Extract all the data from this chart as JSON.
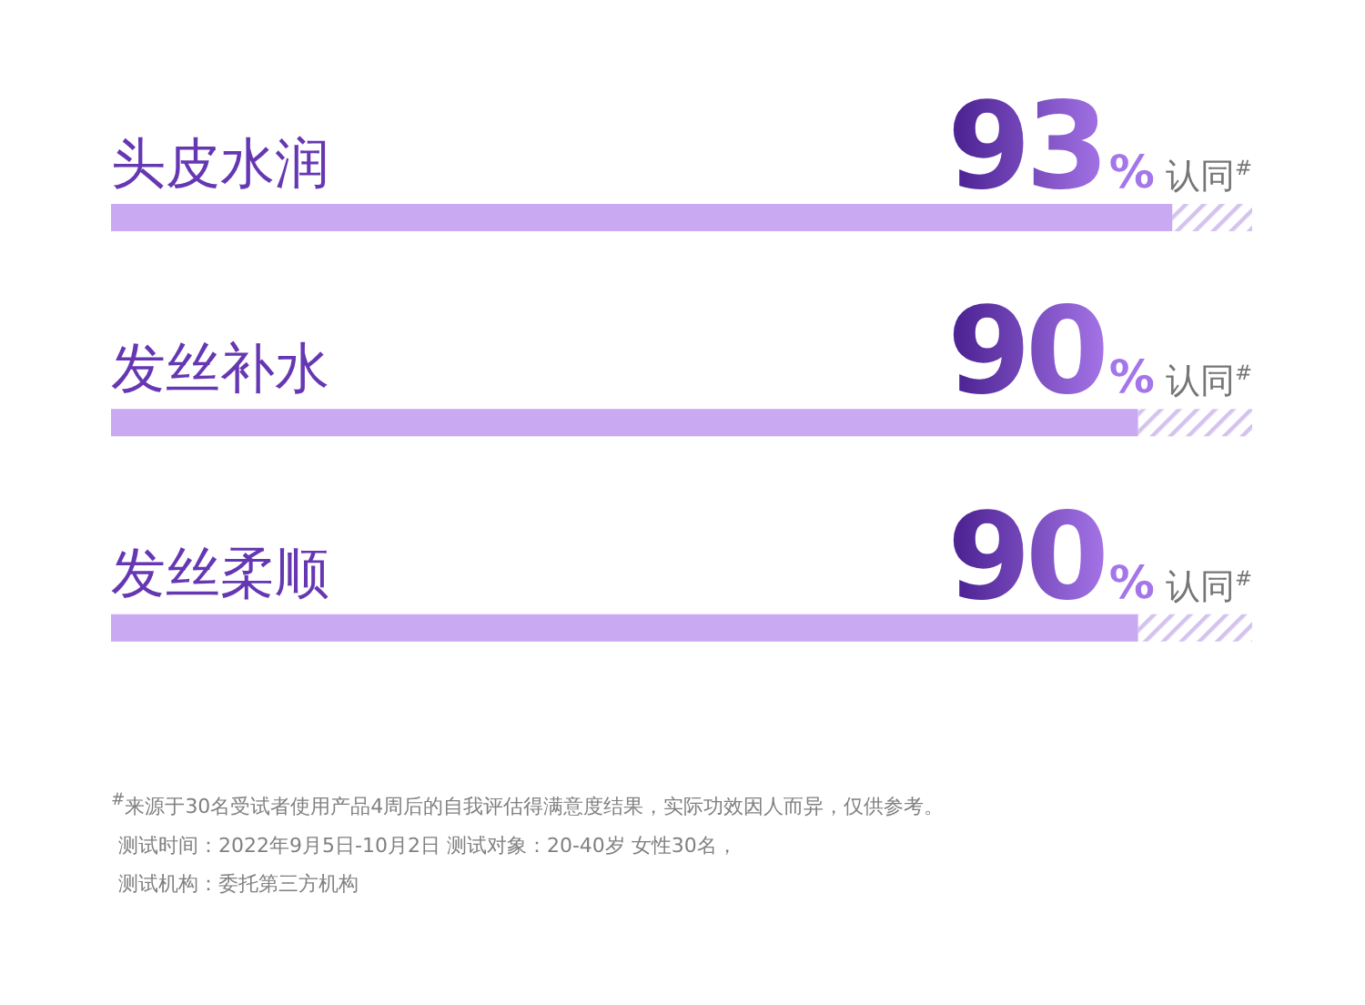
{
  "chart_data": {
    "type": "bar",
    "orientation": "horizontal",
    "categories": [
      "头皮水润",
      "发丝补水",
      "发丝柔顺"
    ],
    "values": [
      93,
      90,
      90
    ],
    "color": "#c9a9f2",
    "value_labels": [
      "93%认同$^{#}$",
      "90%认同$^{#}$",
      "90%认同$^{#}$"
    ],
    "xlim": [
      0,
      100
    ],
    "tick_labels": "y",
    "annotations": [
      "$^{#}$来源于30名受试者使用产品4周后的自我评估得满意度结果，实际功效因人而异，仅供参考。",
      "测试时间：2022年9月5日-10月2日 测试对象：20-40岁 女性30名，",
      "测试机构：委托第三方机构"
    ]
  }
}
